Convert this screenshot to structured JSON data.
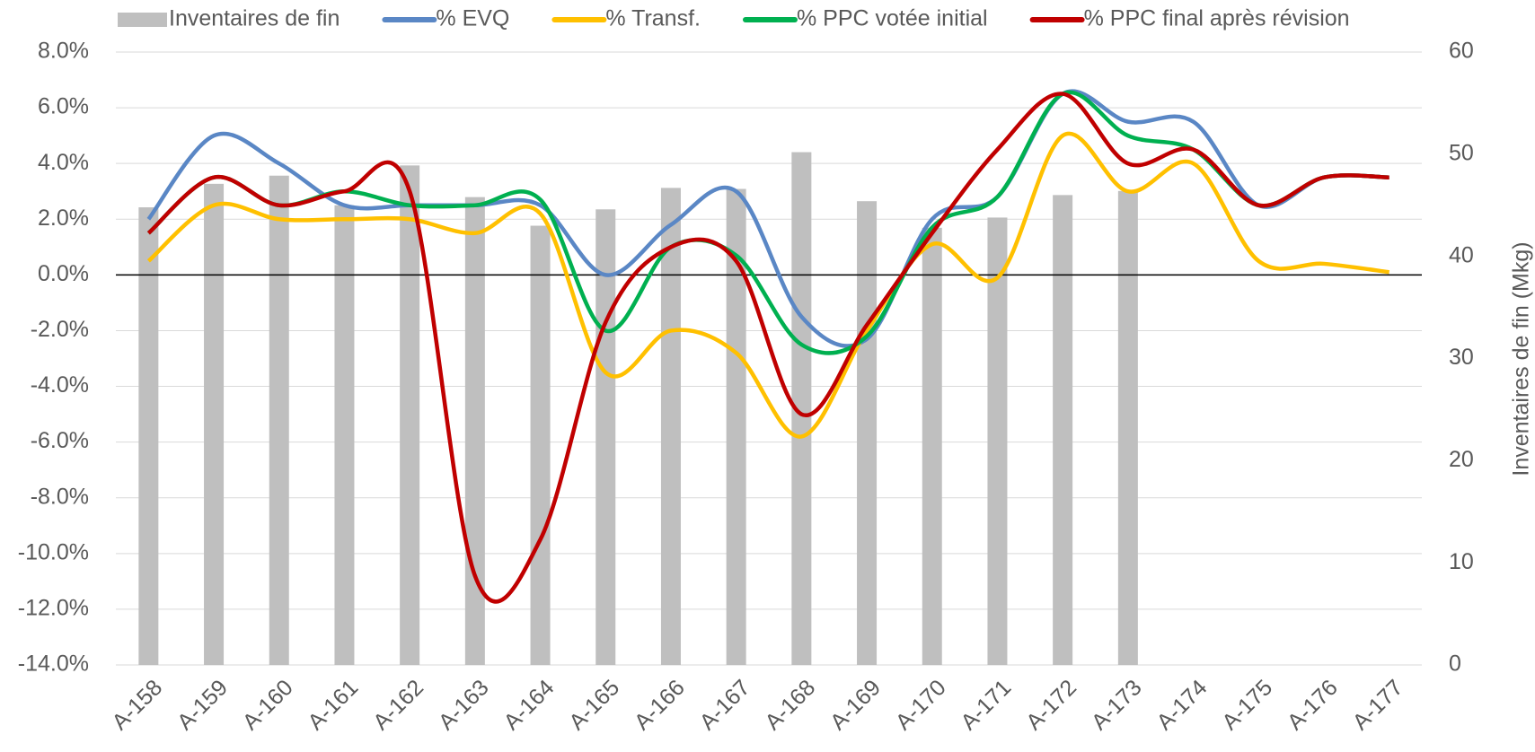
{
  "chart_data": {
    "type": "combo",
    "categories": [
      "A-158",
      "A-159",
      "A-160",
      "A-161",
      "A-162",
      "A-163",
      "A-164",
      "A-165",
      "A-166",
      "A-167",
      "A-168",
      "A-169",
      "A-170",
      "A-171",
      "A-172",
      "A-173",
      "A-174",
      "A-175",
      "A-176",
      "A-177"
    ],
    "series": [
      {
        "name": "Inventaires de fin",
        "type": "bar",
        "axis": "y2",
        "color": "#bfbfbf",
        "values": [
          44.8,
          47.1,
          47.9,
          45.0,
          48.9,
          45.8,
          43.0,
          44.6,
          46.7,
          46.6,
          50.2,
          45.4,
          42.8,
          43.8,
          46.0,
          46.4,
          null,
          null,
          null,
          null
        ]
      },
      {
        "name": "% EVQ",
        "type": "line",
        "color": "#5a87c5",
        "values": [
          2.0,
          5.0,
          4.0,
          2.5,
          2.5,
          2.5,
          2.5,
          0.0,
          1.8,
          3.0,
          -1.5,
          -2.3,
          2.0,
          2.8,
          6.5,
          5.5,
          5.5,
          2.5,
          3.5,
          3.5
        ]
      },
      {
        "name": "% Transf.",
        "type": "line",
        "color": "#ffc000",
        "values": [
          0.5,
          2.5,
          2.0,
          2.0,
          2.0,
          1.5,
          2.2,
          -3.5,
          -2.0,
          -2.8,
          -5.8,
          -2.0,
          1.1,
          -0.1,
          5.0,
          3.0,
          4.0,
          0.5,
          0.4,
          0.1
        ]
      },
      {
        "name": "% PPC votée initial",
        "type": "line",
        "color": "#00b050",
        "values": [
          1.5,
          3.5,
          2.5,
          3.0,
          2.5,
          2.5,
          2.7,
          -2.0,
          1.0,
          0.7,
          -2.5,
          -2.2,
          1.7,
          2.8,
          6.5,
          5.0,
          4.5,
          2.5,
          3.5,
          3.5
        ]
      },
      {
        "name": "% PPC final après révision",
        "type": "line",
        "color": "#c00000",
        "values": [
          1.5,
          3.5,
          2.5,
          3.0,
          3.0,
          -10.8,
          -9.5,
          -1.7,
          1.0,
          0.5,
          -5.0,
          -1.8,
          1.5,
          4.5,
          6.5,
          4.0,
          4.5,
          2.5,
          3.5,
          3.5
        ]
      }
    ],
    "ylim": [
      -14,
      8
    ],
    "yticks": [
      {
        "value": -14,
        "label": "-14.0%"
      },
      {
        "value": -12,
        "label": "-12.0%"
      },
      {
        "value": -10,
        "label": "-10.0%"
      },
      {
        "value": -8,
        "label": "-8.0%"
      },
      {
        "value": -6,
        "label": "-6.0%"
      },
      {
        "value": -4,
        "label": "-4.0%"
      },
      {
        "value": -2,
        "label": "-2.0%"
      },
      {
        "value": 0,
        "label": "0.0%"
      },
      {
        "value": 2,
        "label": "2.0%"
      },
      {
        "value": 4,
        "label": "4.0%"
      },
      {
        "value": 6,
        "label": "6.0%"
      },
      {
        "value": 8,
        "label": "8.0%"
      }
    ],
    "y2lim": [
      0,
      60
    ],
    "y2ticks": [
      0,
      10,
      20,
      30,
      40,
      50,
      60
    ],
    "y2label": "Inventaires de fin (Mkg)",
    "grid": true,
    "legend": "top"
  }
}
